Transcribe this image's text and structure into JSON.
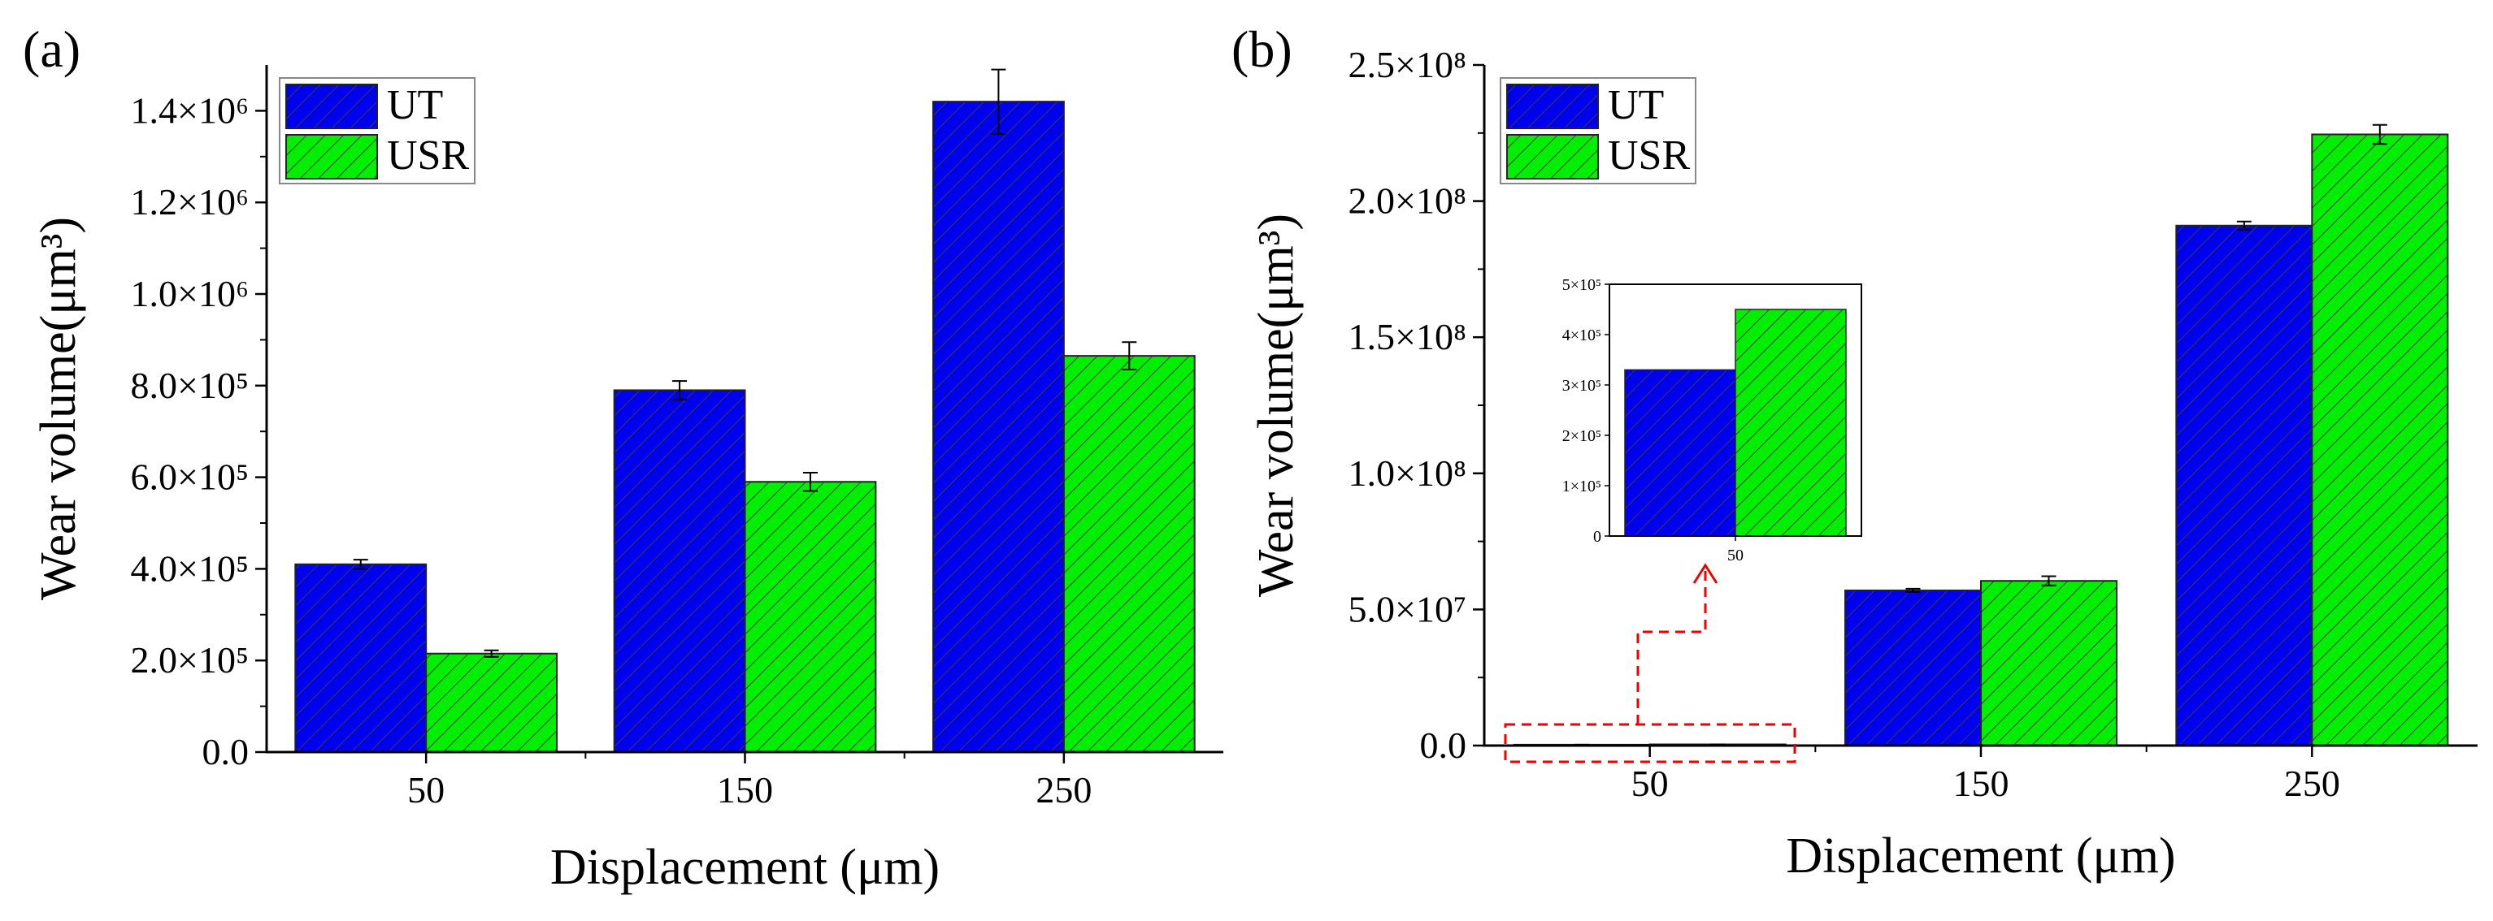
{
  "colors": {
    "UT": "#0000ee",
    "USR": "#00ee00",
    "hatch": "#3c3c3c",
    "callout": "#ee0000"
  },
  "panels": [
    {
      "label": "(a)"
    },
    {
      "label": "(b)"
    }
  ],
  "inset_category": "50",
  "chart_data": [
    {
      "type": "bar",
      "panel": "(a)",
      "categories": [
        "50",
        "150",
        "250"
      ],
      "xlabel": "Displacement (μm)",
      "ylabel": "Wear volume(μm³)",
      "ylim": [
        0,
        1500000
      ],
      "yticks": [
        0,
        200000,
        400000,
        600000,
        800000,
        1000000,
        1200000,
        1400000
      ],
      "ytick_labels": [
        "0.0",
        "2.0×10⁵",
        "4.0×10⁵",
        "6.0×10⁵",
        "8.0×10⁵",
        "1.0×10⁶",
        "1.2×10⁶",
        "1.4×10⁶"
      ],
      "legend": "top-left",
      "grid": false,
      "series": [
        {
          "name": "UT",
          "values": [
            410000,
            790000,
            1420000
          ],
          "errors": [
            10000,
            20000,
            70000
          ]
        },
        {
          "name": "USR",
          "values": [
            215000,
            590000,
            865000
          ],
          "errors": [
            7000,
            20000,
            30000
          ]
        }
      ]
    },
    {
      "type": "bar",
      "panel": "(b)",
      "categories": [
        "50",
        "150",
        "250"
      ],
      "xlabel": "Displacement (μm)",
      "ylabel": "Wear volume(μm³)",
      "ylim": [
        0,
        250000000
      ],
      "yticks": [
        0,
        50000000,
        100000000,
        150000000,
        200000000,
        250000000
      ],
      "ytick_labels": [
        "0.0",
        "5.0×10⁷",
        "1.0×10⁸",
        "1.5×10⁸",
        "2.0×10⁸",
        "2.5×10⁸"
      ],
      "legend": "top-left",
      "grid": false,
      "series": [
        {
          "name": "UT",
          "values": [
            330000,
            57000000,
            191000000
          ],
          "errors": [
            5000,
            600000,
            1500000
          ]
        },
        {
          "name": "USR",
          "values": [
            450000,
            60500000,
            224500000
          ],
          "errors": [
            5000,
            1700000,
            3500000
          ]
        }
      ],
      "inset": {
        "categories": [
          "50"
        ],
        "ylim": [
          0,
          500000
        ],
        "yticks": [
          0,
          100000,
          200000,
          300000,
          400000,
          500000
        ],
        "ytick_labels": [
          "0",
          "1×10⁵",
          "2×10⁵",
          "3×10⁵",
          "4×10⁵",
          "5×10⁵"
        ],
        "series": [
          {
            "name": "UT",
            "values": [
              330000
            ]
          },
          {
            "name": "USR",
            "values": [
              450000
            ]
          }
        ]
      }
    }
  ]
}
